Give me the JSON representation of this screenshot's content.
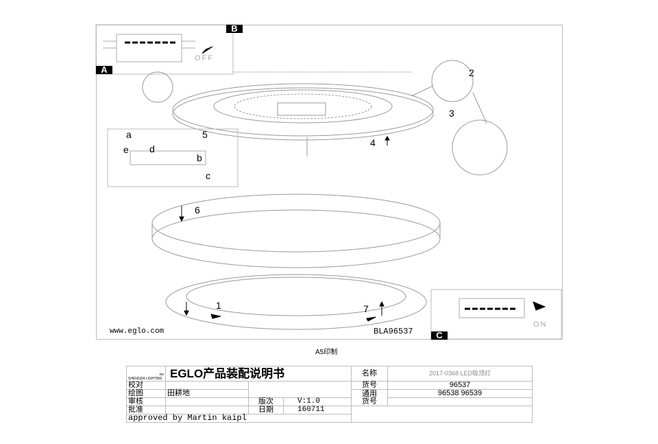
{
  "drawing": {
    "inset_labels": {
      "a": "A",
      "b": "B",
      "c": "C"
    },
    "switch_off": "OFF",
    "switch_on": "ON",
    "steps": [
      "1",
      "2",
      "3",
      "4",
      "5",
      "6",
      "7"
    ],
    "detail_letters": [
      "a",
      "b",
      "c",
      "d",
      "e"
    ],
    "website": "www.eglo.com",
    "code": "BLA96537"
  },
  "print_note": "A5印制",
  "title_block": {
    "logo_text": "SHENGDA LIGHTING",
    "logo_small": "ew",
    "title": "EGLO产品装配说明书",
    "name_label": "名称",
    "name_value": "2017-0368 LED吸顶灯",
    "proof_label": "校对",
    "drawing_label": "绘图",
    "drawing_value": "田耕地",
    "review_label": "审核",
    "approve_label": "批准",
    "version_label": "版次",
    "version_value": "V:1.0",
    "date_label": "日期",
    "date_value": "160711",
    "item_label": "货号",
    "item_value": "96537",
    "common_label": "通用\n货号",
    "common_value": "96538 96539",
    "approved": "approved by Martin kaipl"
  }
}
